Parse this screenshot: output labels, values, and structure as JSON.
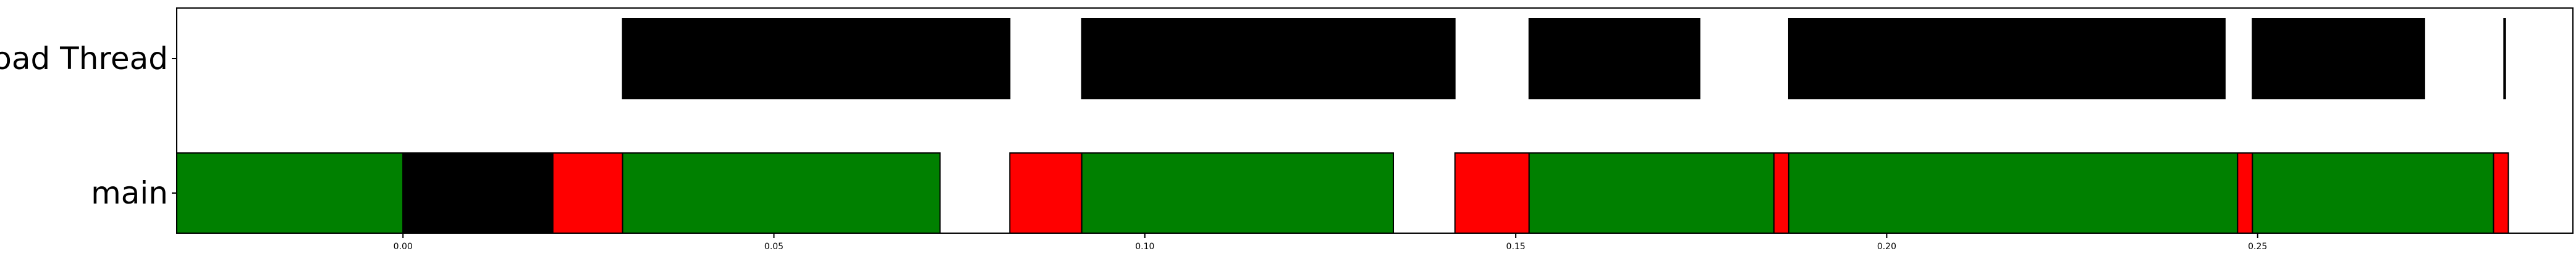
{
  "chart_data": {
    "type": "timeline",
    "title": "",
    "xlabel": "",
    "ylabel": "",
    "xlim": [
      -0.0305,
      0.2925
    ],
    "xticks": [
      {
        "value": 0.0,
        "label": "0.00"
      },
      {
        "value": 0.05,
        "label": "0.05"
      },
      {
        "value": 0.1,
        "label": "0.10"
      },
      {
        "value": 0.15,
        "label": "0.15"
      },
      {
        "value": 0.2,
        "label": "0.20"
      },
      {
        "value": 0.25,
        "label": "0.25"
      }
    ],
    "grid": false,
    "legend": "none",
    "rows": [
      {
        "label": "load Thread",
        "segments": [
          {
            "start": 0.0296,
            "end": 0.0818,
            "color": "#000000"
          },
          {
            "start": 0.0915,
            "end": 0.1418,
            "color": "#000000"
          },
          {
            "start": 0.1518,
            "end": 0.1748,
            "color": "#000000"
          },
          {
            "start": 0.1868,
            "end": 0.2456,
            "color": "#000000"
          },
          {
            "start": 0.2493,
            "end": 0.2725,
            "color": "#000000"
          },
          {
            "start": 0.2832,
            "end": 0.2834,
            "color": "#000000"
          }
        ]
      },
      {
        "label": "main",
        "segments": [
          {
            "start": -0.0305,
            "end": 0.0,
            "color": "#008000"
          },
          {
            "start": 0.0,
            "end": 0.0202,
            "color": "#000000"
          },
          {
            "start": 0.0202,
            "end": 0.0296,
            "color": "#ff0000"
          },
          {
            "start": 0.0296,
            "end": 0.0724,
            "color": "#008000"
          },
          {
            "start": 0.0818,
            "end": 0.0915,
            "color": "#ff0000"
          },
          {
            "start": 0.0915,
            "end": 0.1335,
            "color": "#008000"
          },
          {
            "start": 0.1418,
            "end": 0.1518,
            "color": "#ff0000"
          },
          {
            "start": 0.1518,
            "end": 0.1848,
            "color": "#008000"
          },
          {
            "start": 0.1848,
            "end": 0.1868,
            "color": "#ff0000"
          },
          {
            "start": 0.1868,
            "end": 0.2473,
            "color": "#008000"
          },
          {
            "start": 0.2473,
            "end": 0.2493,
            "color": "#ff0000"
          },
          {
            "start": 0.2493,
            "end": 0.2818,
            "color": "#008000"
          },
          {
            "start": 0.2818,
            "end": 0.2838,
            "color": "#ff0000"
          }
        ]
      }
    ]
  }
}
